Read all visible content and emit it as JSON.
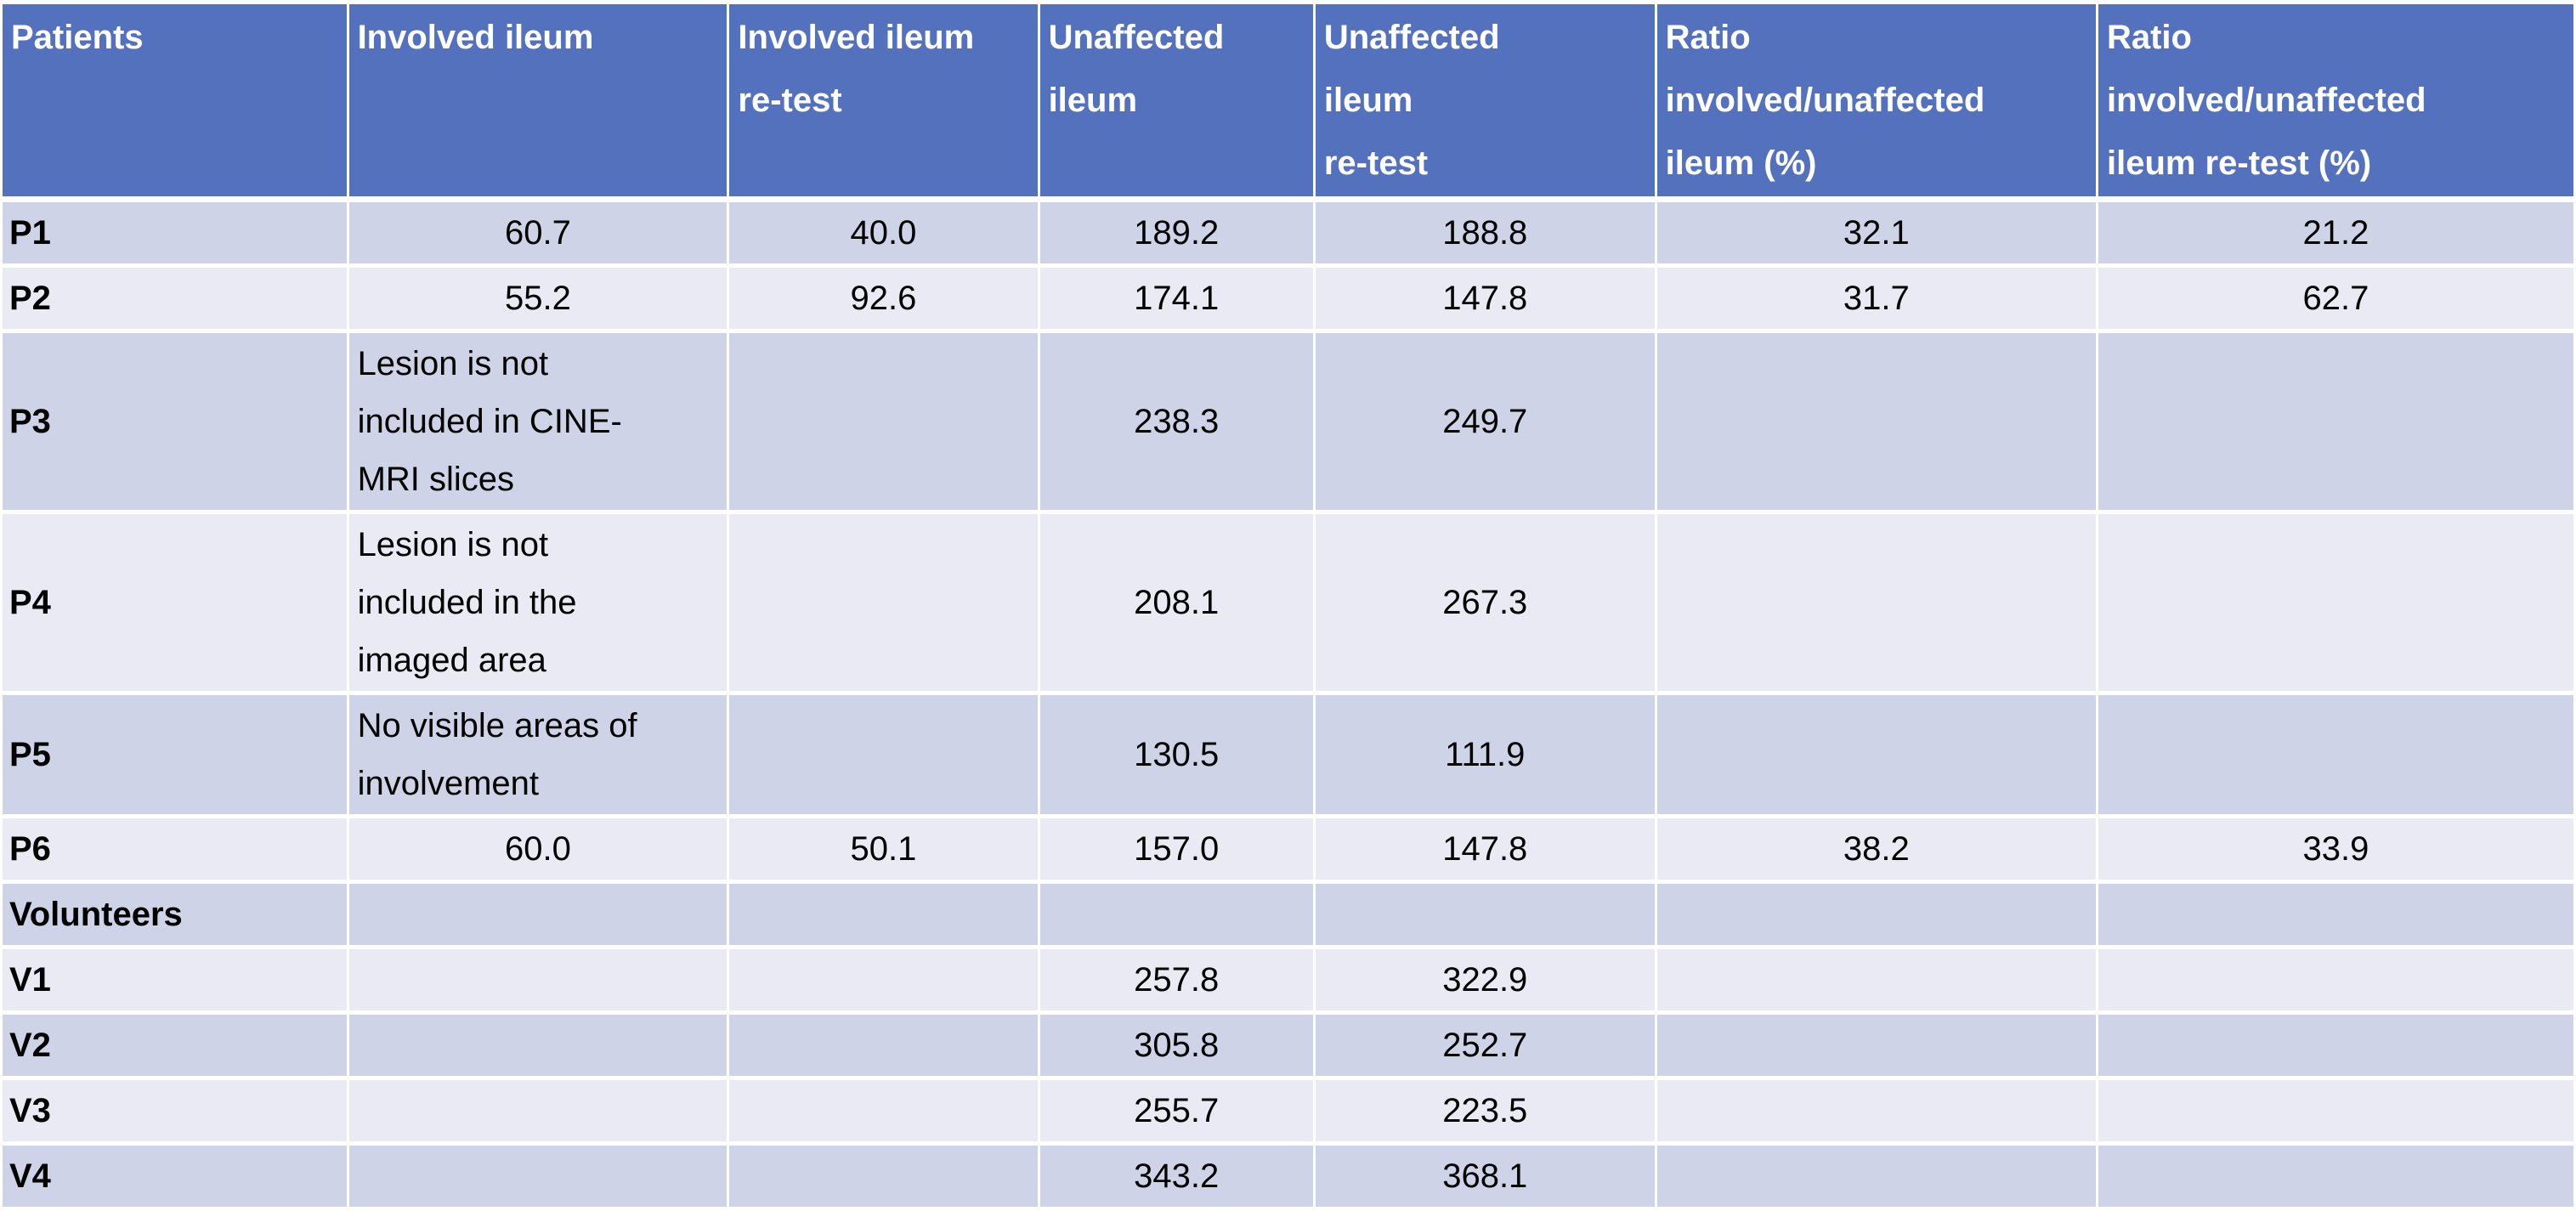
{
  "colors": {
    "header_bg": "#5371BD",
    "header_text": "#FFFFFF",
    "band_dark": "#CFD3E7",
    "band_light": "#E9EAF3",
    "body_text": "#000000",
    "grid": "#FFFFFF"
  },
  "chart_data": {
    "type": "table",
    "columns": [
      "Patients",
      "Involved ileum",
      "Involved ileum\nre-test",
      "Unaffected\nileum",
      "Unaffected\nileum\nre-test",
      "Ratio\ninvolved/unaffected\nileum (%)",
      "Ratio\ninvolved/unaffected\nileum re-test (%)"
    ],
    "rows": [
      [
        "P1",
        "60.7",
        "40.0",
        "189.2",
        "188.8",
        "32.1",
        "21.2"
      ],
      [
        "P2",
        "55.2",
        "92.6",
        "174.1",
        "147.8",
        "31.7",
        "62.7"
      ],
      [
        "P3",
        "Lesion is not\nincluded in CINE-\nMRI slices",
        "",
        "238.3",
        "249.7",
        "",
        ""
      ],
      [
        "P4",
        "Lesion is not\nincluded in the\nimaged area",
        "",
        "208.1",
        "267.3",
        "",
        ""
      ],
      [
        "P5",
        "No visible areas of\ninvolvement",
        "",
        "130.5",
        "111.9",
        "",
        ""
      ],
      [
        "P6",
        "60.0",
        "50.1",
        "157.0",
        "147.8",
        "38.2",
        "33.9"
      ],
      [
        "Volunteers",
        "",
        "",
        "",
        "",
        "",
        ""
      ],
      [
        "V1",
        "",
        "",
        "257.8",
        "322.9",
        "",
        ""
      ],
      [
        "V2",
        "",
        "",
        "305.8",
        "252.7",
        "",
        ""
      ],
      [
        "V3",
        "",
        "",
        "255.7",
        "223.5",
        "",
        ""
      ],
      [
        "V4",
        "",
        "",
        "343.2",
        "368.1",
        "",
        ""
      ]
    ]
  }
}
